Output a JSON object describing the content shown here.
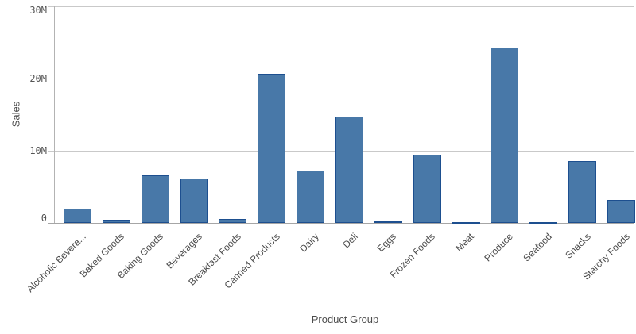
{
  "chart_data": {
    "type": "bar",
    "title": "",
    "xlabel": "Product Group",
    "ylabel": "Sales",
    "categories": [
      "Alcoholic Bevera...",
      "Baked Goods",
      "Baking Goods",
      "Beverages",
      "Breakfast Foods",
      "Canned Products",
      "Dairy",
      "Deli",
      "Eggs",
      "Frozen Foods",
      "Meat",
      "Produce",
      "Seafood",
      "Snacks",
      "Starchy Foods"
    ],
    "values_millions": [
      2.0,
      0.4,
      6.6,
      6.1,
      0.5,
      20.7,
      7.2,
      14.7,
      0.2,
      9.4,
      0.1,
      24.3,
      0.1,
      8.6,
      3.2
    ],
    "unit": "M",
    "ylim_millions": [
      0,
      30
    ],
    "yticks": [
      {
        "value": 0,
        "label": "0"
      },
      {
        "value": 10,
        "label": "10M"
      },
      {
        "value": 20,
        "label": "20M"
      },
      {
        "value": 30,
        "label": "30M"
      }
    ],
    "grid": "horizontal gridlines every 10M",
    "legend": "none",
    "colors": {
      "bar_fill": "#4878a8",
      "bar_border": "#1d4f8f",
      "gridline": "#c9c9c9",
      "baseline": "#a6a6a6",
      "axis_line": "#b3b3b3",
      "tick_text": "#545454",
      "label_text": "#4c4c4c"
    }
  }
}
